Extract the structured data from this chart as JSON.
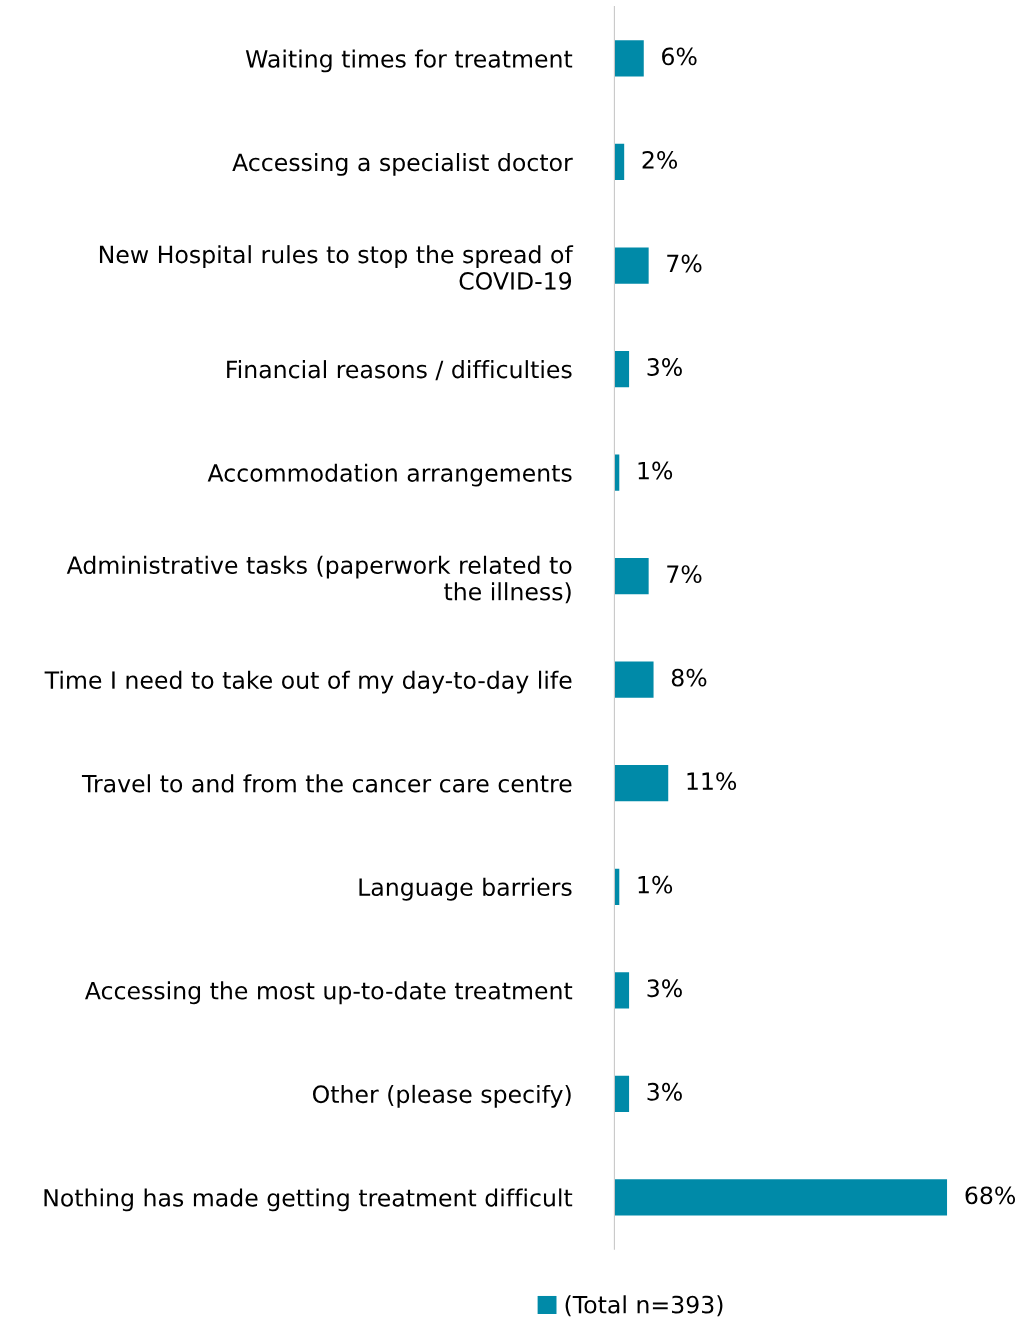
{
  "chart_data": {
    "type": "bar",
    "orientation": "horizontal",
    "categories": [
      "Waiting times for treatment",
      "Accessing a specialist doctor",
      "New Hospital rules to stop the spread of\nCOVID-19",
      "Financial reasons / difficulties",
      "Accommodation arrangements",
      "Administrative tasks (paperwork related to\nthe illness)",
      "Time I need to take out of my day-to-day life",
      "Travel to and from the cancer care centre",
      "Language barriers",
      "Accessing the most up-to-date treatment",
      "Other (please specify)",
      "Nothing has made getting treatment difficult"
    ],
    "series": [
      {
        "name": "(Total n=393)",
        "color": "#008aa8",
        "values": [
          6,
          2,
          7,
          3,
          1,
          7,
          8,
          11,
          1,
          3,
          3,
          68
        ],
        "value_labels": [
          "6%",
          "2%",
          "7%",
          "3%",
          "1%",
          "7%",
          "8%",
          "11%",
          "1%",
          "3%",
          "3%",
          "68%"
        ]
      }
    ],
    "legend": "bottom",
    "grid": false
  }
}
